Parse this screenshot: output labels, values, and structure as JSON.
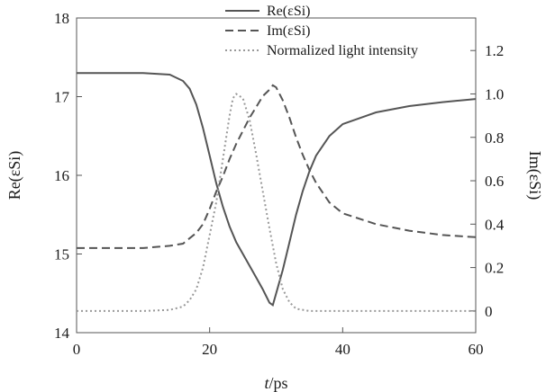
{
  "chart_data": {
    "type": "line",
    "xlabel_italic": "t",
    "xlabel_rest": "/ps",
    "ylabel_left": "Re(εSi)",
    "ylabel_right": "Im(εSi)",
    "xlim": [
      0,
      60
    ],
    "ylim_left": [
      14,
      18
    ],
    "ylim_right": [
      -0.1,
      1.35
    ],
    "x_ticks": [
      0,
      20,
      40,
      60
    ],
    "y_left_ticks": [
      14,
      15,
      16,
      17,
      18
    ],
    "y_right_ticks": [
      0,
      0.2,
      0.4,
      0.6,
      0.8,
      1.0,
      1.2
    ],
    "y_right_tick_labels": [
      "0",
      "0.2",
      "0.4",
      "0.6",
      "0.8",
      "1.0",
      "1.2"
    ],
    "grid": false,
    "legend_position": "top-center",
    "series": [
      {
        "name": "Re(εSi)",
        "axis": "left",
        "style": "solid",
        "color": "#555555",
        "points": [
          [
            0,
            17.3
          ],
          [
            10,
            17.3
          ],
          [
            14,
            17.28
          ],
          [
            16,
            17.2
          ],
          [
            17,
            17.1
          ],
          [
            18,
            16.9
          ],
          [
            19,
            16.6
          ],
          [
            20,
            16.25
          ],
          [
            21,
            15.9
          ],
          [
            22,
            15.6
          ],
          [
            23,
            15.35
          ],
          [
            24,
            15.15
          ],
          [
            25,
            15.0
          ],
          [
            26,
            14.85
          ],
          [
            27,
            14.7
          ],
          [
            28,
            14.55
          ],
          [
            29,
            14.38
          ],
          [
            29.5,
            14.35
          ],
          [
            30,
            14.5
          ],
          [
            31,
            14.8
          ],
          [
            32,
            15.15
          ],
          [
            33,
            15.5
          ],
          [
            34,
            15.8
          ],
          [
            35,
            16.05
          ],
          [
            36,
            16.25
          ],
          [
            38,
            16.5
          ],
          [
            40,
            16.65
          ],
          [
            45,
            16.8
          ],
          [
            50,
            16.88
          ],
          [
            55,
            16.93
          ],
          [
            60,
            16.97
          ]
        ]
      },
      {
        "name": "Im(εSi)",
        "axis": "right",
        "style": "dashed",
        "color": "#555555",
        "points": [
          [
            0,
            0.29
          ],
          [
            10,
            0.29
          ],
          [
            14,
            0.3
          ],
          [
            16,
            0.31
          ],
          [
            18,
            0.36
          ],
          [
            19,
            0.4
          ],
          [
            20,
            0.47
          ],
          [
            21,
            0.55
          ],
          [
            22,
            0.62
          ],
          [
            23,
            0.7
          ],
          [
            24,
            0.77
          ],
          [
            25,
            0.83
          ],
          [
            26,
            0.89
          ],
          [
            27,
            0.94
          ],
          [
            28,
            0.99
          ],
          [
            29,
            1.02
          ],
          [
            29.5,
            1.04
          ],
          [
            30,
            1.03
          ],
          [
            31,
            0.97
          ],
          [
            32,
            0.89
          ],
          [
            33,
            0.8
          ],
          [
            34,
            0.72
          ],
          [
            35,
            0.65
          ],
          [
            36,
            0.59
          ],
          [
            38,
            0.5
          ],
          [
            40,
            0.45
          ],
          [
            45,
            0.4
          ],
          [
            50,
            0.37
          ],
          [
            55,
            0.35
          ],
          [
            60,
            0.34
          ]
        ]
      },
      {
        "name": "Normalized light intensity",
        "axis": "right",
        "style": "dotted",
        "color": "#999999",
        "points": [
          [
            0,
            0
          ],
          [
            10,
            0
          ],
          [
            14,
            0.005
          ],
          [
            16,
            0.02
          ],
          [
            17,
            0.05
          ],
          [
            18,
            0.1
          ],
          [
            19,
            0.2
          ],
          [
            20,
            0.35
          ],
          [
            21,
            0.5
          ],
          [
            22,
            0.7
          ],
          [
            23,
            0.9
          ],
          [
            23.5,
            0.98
          ],
          [
            24,
            1.0
          ],
          [
            25,
            0.98
          ],
          [
            26,
            0.88
          ],
          [
            27,
            0.72
          ],
          [
            28,
            0.55
          ],
          [
            29,
            0.38
          ],
          [
            30,
            0.22
          ],
          [
            31,
            0.1
          ],
          [
            32,
            0.04
          ],
          [
            33,
            0.01
          ],
          [
            35,
            0.0
          ],
          [
            40,
            0
          ],
          [
            60,
            0
          ]
        ]
      }
    ]
  }
}
